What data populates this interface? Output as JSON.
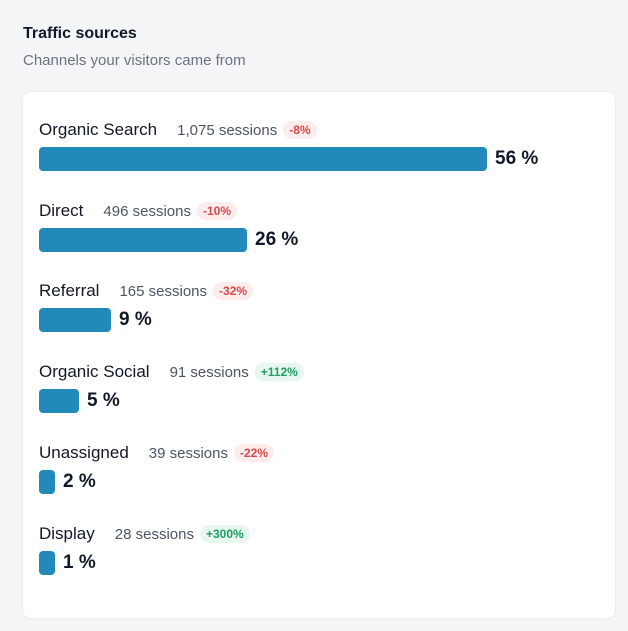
{
  "header": {
    "title": "Traffic sources",
    "subtitle": "Channels your visitors came from"
  },
  "colors": {
    "bar": "#228ab8",
    "negative_badge_bg": "#fdecec",
    "negative_badge_text": "#dc4848",
    "positive_badge_bg": "#e7f7ef",
    "positive_badge_text": "#1f9d63"
  },
  "channels": [
    {
      "name": "Organic Search",
      "sessions": "1,075 sessions",
      "change": "-8%",
      "trend": "negative",
      "share_label": "56 %",
      "share": 56
    },
    {
      "name": "Direct",
      "sessions": "496 sessions",
      "change": "-10%",
      "trend": "negative",
      "share_label": "26 %",
      "share": 26
    },
    {
      "name": "Referral",
      "sessions": "165 sessions",
      "change": "-32%",
      "trend": "negative",
      "share_label": "9 %",
      "share": 9
    },
    {
      "name": "Organic Social",
      "sessions": "91 sessions",
      "change": "+112%",
      "trend": "positive",
      "share_label": "5 %",
      "share": 5
    },
    {
      "name": "Unassigned",
      "sessions": "39 sessions",
      "change": "-22%",
      "trend": "negative",
      "share_label": "2 %",
      "share": 2
    },
    {
      "name": "Display",
      "sessions": "28 sessions",
      "change": "+300%",
      "trend": "positive",
      "share_label": "1 %",
      "share": 1
    }
  ]
}
